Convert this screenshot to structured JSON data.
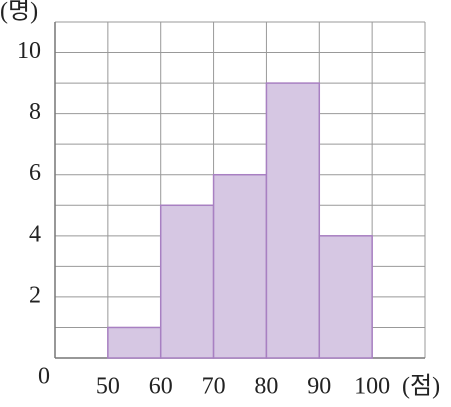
{
  "chart_data": {
    "type": "histogram",
    "y_label": "(명)",
    "x_label": "(점)",
    "origin_label": "0",
    "bins": [
      50,
      60,
      70,
      80,
      90,
      100
    ],
    "values": [
      1,
      5,
      6,
      9,
      4
    ],
    "color": "#d6c7e3",
    "edge_color": "#a880c2",
    "xlim": [
      40,
      110
    ],
    "ylim": [
      0,
      11
    ],
    "xticks": [
      50,
      60,
      70,
      80,
      90,
      100
    ],
    "yticks": [
      2,
      4,
      6,
      8,
      10
    ],
    "xgrid": [
      40,
      50,
      60,
      70,
      80,
      90,
      100,
      110
    ],
    "ygrid": [
      1,
      2,
      3,
      4,
      5,
      6,
      7,
      8,
      9,
      10,
      11
    ],
    "grid": true
  }
}
